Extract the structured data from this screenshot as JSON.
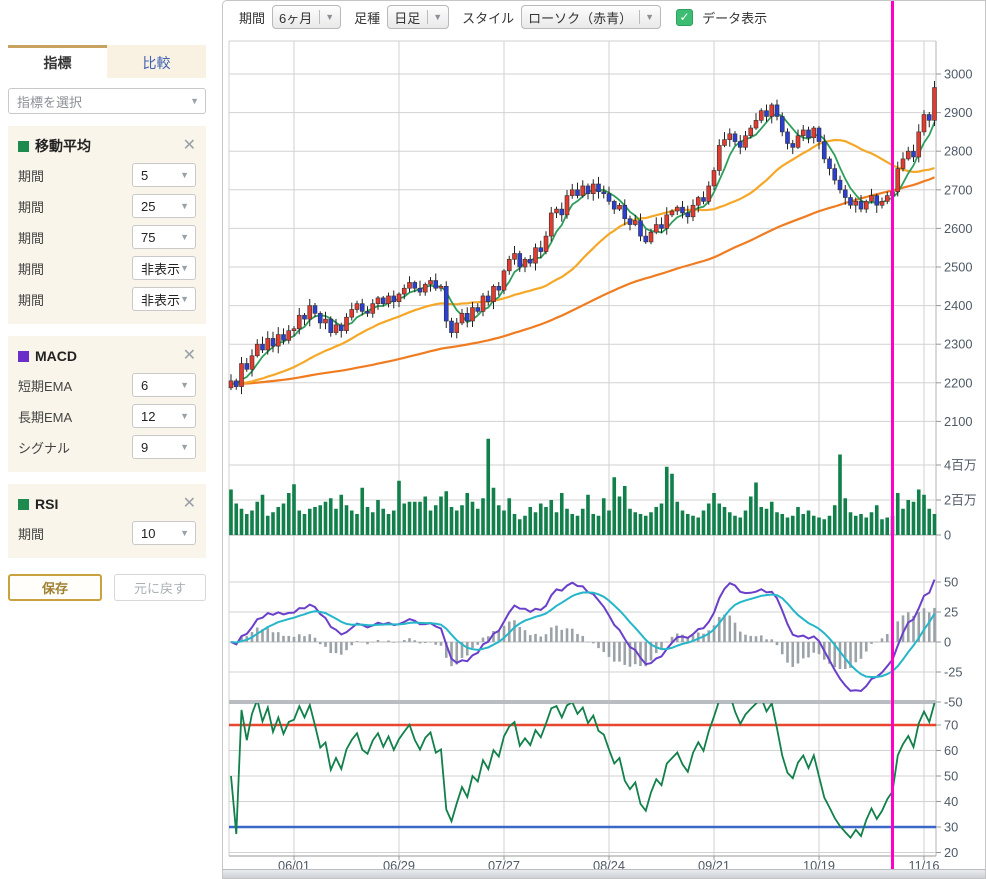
{
  "icons": {
    "caret": "▼",
    "close": "✕",
    "check": "✓"
  },
  "toolbar": {
    "period_label": "期間",
    "period_value": "6ヶ月",
    "candle_type_label": "足種",
    "candle_type_value": "日足",
    "style_label": "スタイル",
    "style_value": "ローソク（赤青）",
    "data_display_label": "データ表示",
    "data_display_checked": true
  },
  "sidebar": {
    "tabs": [
      {
        "label": "指標",
        "active": true
      },
      {
        "label": "比較",
        "active": false
      }
    ],
    "indicator_select_placeholder": "指標を選択",
    "panels": [
      {
        "title": "移動平均",
        "color": "#1d8a4e",
        "rows": [
          {
            "label": "期間",
            "value": "5"
          },
          {
            "label": "期間",
            "value": "25"
          },
          {
            "label": "期間",
            "value": "75"
          },
          {
            "label": "期間",
            "value": "非表示"
          },
          {
            "label": "期間",
            "value": "非表示"
          }
        ]
      },
      {
        "title": "MACD",
        "color": "#6a2fc9",
        "rows": [
          {
            "label": "短期EMA",
            "value": "6"
          },
          {
            "label": "長期EMA",
            "value": "12"
          },
          {
            "label": "シグナル",
            "value": "9"
          }
        ]
      },
      {
        "title": "RSI",
        "color": "#1d8a4e",
        "rows": [
          {
            "label": "期間",
            "value": "10"
          }
        ]
      }
    ],
    "save_button": "保存",
    "reset_button": "元に戻す"
  },
  "chart_data": {
    "type": "candlestick",
    "panes": [
      "price+sma(5,25,75)",
      "volume",
      "macd(6,12,9)",
      "rsi(10)"
    ],
    "x_labels": [
      "06/01",
      "06/29",
      "07/27",
      "08/24",
      "09/21",
      "10/19",
      "11/16"
    ],
    "x_label_days": [
      12,
      32,
      52,
      72,
      92,
      112,
      132
    ],
    "price_axis_ticks": [
      3000,
      2900,
      2800,
      2700,
      2600,
      2500,
      2400,
      2300,
      2200,
      2100
    ],
    "volume_axis_ticks": [
      {
        "v": 4,
        "label": "4百万"
      },
      {
        "v": 2,
        "label": "2百万"
      },
      {
        "v": 0,
        "label": "0"
      }
    ],
    "macd_axis_ticks": [
      50,
      25,
      0,
      -25,
      -50
    ],
    "rsi_axis_ticks": [
      70,
      60,
      50,
      40,
      30,
      20
    ],
    "rsi_overbought": 70,
    "rsi_oversold": 30,
    "indicators": {
      "sma_periods": [
        5,
        25,
        75
      ],
      "macd_fast": 6,
      "macd_slow": 12,
      "macd_signal": 9,
      "rsi_period": 10
    },
    "crosshair_day_index": 126,
    "closes": [
      2205,
      2190,
      2250,
      2235,
      2270,
      2300,
      2285,
      2315,
      2295,
      2325,
      2310,
      2335,
      2340,
      2375,
      2365,
      2400,
      2380,
      2355,
      2365,
      2330,
      2350,
      2335,
      2370,
      2390,
      2405,
      2385,
      2380,
      2405,
      2420,
      2405,
      2425,
      2410,
      2430,
      2445,
      2460,
      2445,
      2435,
      2455,
      2465,
      2445,
      2450,
      2360,
      2330,
      2355,
      2380,
      2360,
      2395,
      2385,
      2425,
      2410,
      2450,
      2440,
      2490,
      2520,
      2535,
      2500,
      2520,
      2510,
      2550,
      2540,
      2580,
      2640,
      2650,
      2635,
      2685,
      2700,
      2685,
      2710,
      2690,
      2715,
      2695,
      2690,
      2670,
      2650,
      2660,
      2625,
      2610,
      2620,
      2580,
      2565,
      2590,
      2610,
      2600,
      2635,
      2645,
      2655,
      2640,
      2630,
      2660,
      2680,
      2670,
      2710,
      2750,
      2815,
      2830,
      2845,
      2825,
      2810,
      2840,
      2860,
      2880,
      2905,
      2890,
      2920,
      2890,
      2850,
      2820,
      2810,
      2840,
      2855,
      2835,
      2860,
      2825,
      2780,
      2755,
      2725,
      2700,
      2680,
      2660,
      2670,
      2650,
      2670,
      2685,
      2660,
      2670,
      2685,
      2695,
      2755,
      2780,
      2800,
      2785,
      2850,
      2895,
      2880,
      2965
    ],
    "volumes_millions": [
      2.6,
      1.8,
      1.5,
      1.2,
      1.4,
      1.9,
      2.3,
      1.1,
      1.3,
      1.6,
      1.8,
      2.4,
      2.9,
      1.4,
      1.2,
      1.5,
      1.6,
      1.7,
      1.9,
      2.1,
      1.5,
      2.3,
      1.7,
      1.4,
      1.2,
      2.7,
      1.6,
      1.3,
      2.0,
      1.5,
      1.2,
      1.4,
      3.1,
      1.8,
      1.9,
      1.9,
      1.9,
      2.2,
      1.4,
      1.7,
      2.2,
      2.5,
      1.6,
      1.4,
      1.7,
      2.4,
      1.9,
      1.5,
      2.1,
      5.5,
      2.7,
      1.7,
      1.4,
      2.1,
      1.2,
      0.9,
      1.1,
      1.6,
      1.3,
      1.8,
      1.6,
      2.0,
      1.3,
      2.4,
      1.5,
      1.2,
      1.1,
      1.5,
      2.3,
      1.2,
      1.1,
      2.1,
      1.4,
      3.3,
      2.2,
      2.8,
      1.5,
      1.3,
      1.2,
      1.1,
      1.3,
      1.6,
      1.8,
      3.9,
      3.5,
      1.9,
      1.4,
      1.2,
      1.1,
      1.0,
      1.4,
      1.8,
      2.4,
      1.8,
      1.6,
      1.3,
      1.1,
      1.0,
      1.4,
      2.2,
      3.0,
      1.6,
      1.5,
      1.9,
      1.3,
      1.2,
      1.0,
      1.1,
      1.6,
      1.2,
      1.4,
      1.1,
      1.0,
      0.9,
      1.1,
      1.7,
      4.6,
      2.1,
      1.3,
      1.1,
      1.2,
      1.0,
      1.3,
      1.7,
      0.9,
      1.0,
      1.1,
      2.4,
      1.5,
      2.0,
      1.9,
      2.6,
      2.3,
      1.5,
      1.2
    ],
    "colors": {
      "up": "#e33b2e",
      "down": "#2b3fd0",
      "ma5": "#2e9e5b",
      "ma25": "#f5a827",
      "ma75": "#f07c22",
      "volume": "#11804a",
      "macd": "#6a3fc9",
      "signal": "#25b6c9",
      "histogram": "#9ba2a8",
      "rsi": "#11804a",
      "overbought": "#e8472f",
      "oversold": "#3a68c8",
      "crosshair": "#ff00c8",
      "grid": "#d2d2d2",
      "axis_text": "#4e5a66"
    }
  }
}
